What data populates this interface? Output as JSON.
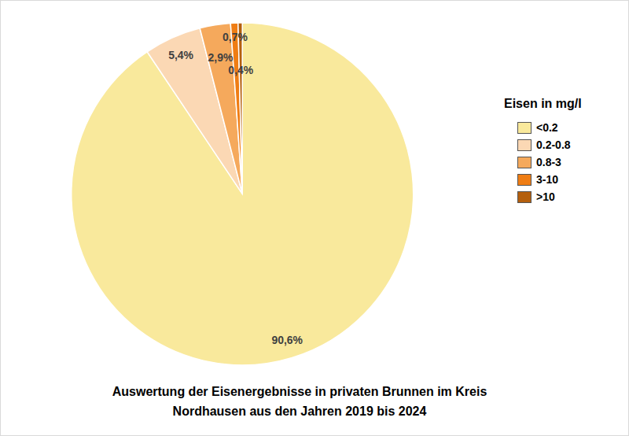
{
  "chart_data": {
    "type": "pie",
    "title": "Auswertung der Eisenergebnisse in privaten Brunnen im Kreis\nNordhausen aus den Jahren 2019 bis 2024",
    "legend_title": "Eisen in mg/l",
    "categories": [
      "<0.2",
      "0.2-0.8",
      "0.8-3",
      "3-10",
      ">10"
    ],
    "values": [
      90.6,
      5.4,
      2.9,
      0.7,
      0.4
    ],
    "value_labels": [
      "90,6%",
      "5,4%",
      "2,9%",
      "0,7%",
      "0,4%"
    ],
    "colors": [
      "#f9e99c",
      "#fbd8b4",
      "#f5a95c",
      "#ef7d14",
      "#b45f0d"
    ],
    "data_labels": true,
    "legend": "right"
  }
}
